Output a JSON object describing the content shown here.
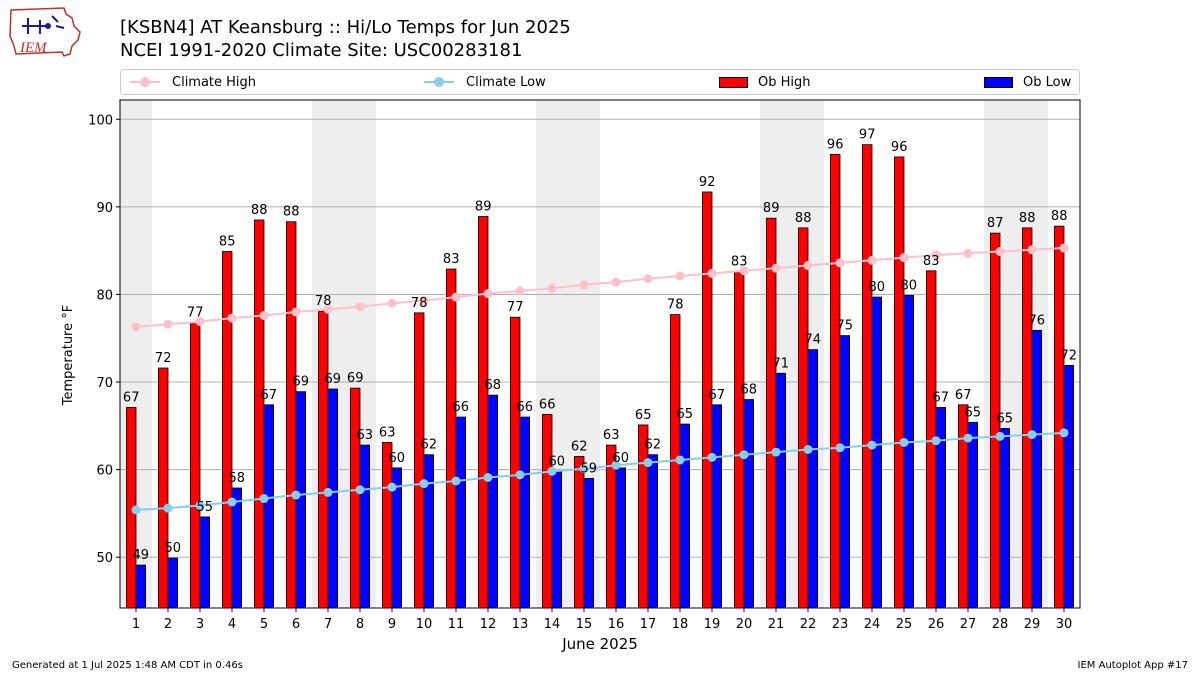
{
  "header": {
    "logo_text": "IEM",
    "title_line1": "[KSBN4] AT Keansburg :: Hi/Lo Temps for Jun 2025",
    "title_line2": "NCEI 1991-2020 Climate Site: USC00283181"
  },
  "legend": {
    "climate_high": "Climate High",
    "climate_low": "Climate Low",
    "ob_high": "Ob High",
    "ob_low": "Ob Low"
  },
  "colors": {
    "ob_high": "#ff0000",
    "ob_low": "#0000ff",
    "climate_high": "#ffc0cb",
    "climate_low": "#87ceeb",
    "weekend_band": "#eeeeee"
  },
  "footer": {
    "left": "Generated at 1 Jul 2025 1:48 AM CDT in 0.46s",
    "right": "IEM Autoplot App #17"
  },
  "chart_data": {
    "type": "bar",
    "xlabel": "June 2025",
    "ylabel": "Temperature °F",
    "ylim": [
      44.2,
      102.2
    ],
    "yticks": [
      50,
      60,
      70,
      80,
      90,
      100
    ],
    "grid": true,
    "legend_position": "top",
    "categories": [
      "1",
      "2",
      "3",
      "4",
      "5",
      "6",
      "7",
      "8",
      "9",
      "10",
      "11",
      "12",
      "13",
      "14",
      "15",
      "16",
      "17",
      "18",
      "19",
      "20",
      "21",
      "22",
      "23",
      "24",
      "25",
      "26",
      "27",
      "28",
      "29",
      "30"
    ],
    "weekend_days": [
      1,
      7,
      8,
      14,
      15,
      21,
      22,
      28,
      29
    ],
    "series": [
      {
        "name": "Ob High",
        "kind": "bar",
        "values": [
          67.1,
          71.6,
          76.8,
          84.9,
          88.5,
          88.3,
          78.1,
          69.3,
          63.1,
          77.9,
          82.9,
          88.9,
          77.4,
          66.3,
          61.5,
          62.8,
          65.1,
          77.7,
          91.7,
          82.6,
          88.7,
          87.6,
          96.0,
          97.1,
          95.7,
          82.7,
          67.4,
          87.0,
          87.6,
          87.8
        ],
        "labels": [
          "67",
          "72",
          "77",
          "85",
          "88",
          "88",
          "78",
          "69",
          "63",
          "78",
          "83",
          "89",
          "77",
          "66",
          "62",
          "63",
          "65",
          "78",
          "92",
          "83",
          "89",
          "88",
          "96",
          "97",
          "96",
          "83",
          "67",
          "87",
          "88",
          "88"
        ]
      },
      {
        "name": "Ob Low",
        "kind": "bar",
        "values": [
          49.1,
          49.9,
          54.6,
          57.9,
          67.4,
          68.9,
          69.2,
          62.8,
          60.2,
          61.7,
          66.0,
          68.5,
          66.0,
          59.8,
          59.0,
          60.2,
          61.7,
          65.2,
          67.4,
          68.0,
          71.0,
          73.7,
          75.3,
          79.7,
          79.9,
          67.1,
          65.4,
          64.7,
          75.9,
          71.9
        ],
        "labels": [
          "49",
          "50",
          "55",
          "58",
          "67",
          "69",
          "69",
          "63",
          "60",
          "62",
          "66",
          "68",
          "66",
          "60",
          "59",
          "60",
          "62",
          "65",
          "67",
          "68",
          "71",
          "74",
          "75",
          "80",
          "80",
          "67",
          "65",
          "65",
          "76",
          "72"
        ]
      },
      {
        "name": "Climate High",
        "kind": "line",
        "values": [
          76.3,
          76.6,
          76.9,
          77.3,
          77.6,
          78.0,
          78.3,
          78.6,
          79.0,
          79.3,
          79.7,
          80.1,
          80.4,
          80.7,
          81.1,
          81.4,
          81.8,
          82.1,
          82.4,
          82.7,
          83.0,
          83.3,
          83.6,
          83.9,
          84.2,
          84.5,
          84.7,
          84.9,
          85.1,
          85.3
        ]
      },
      {
        "name": "Climate Low",
        "kind": "line",
        "values": [
          55.4,
          55.6,
          55.9,
          56.3,
          56.7,
          57.1,
          57.4,
          57.7,
          58.0,
          58.4,
          58.7,
          59.1,
          59.4,
          59.8,
          60.1,
          60.5,
          60.8,
          61.1,
          61.4,
          61.7,
          62.0,
          62.3,
          62.5,
          62.8,
          63.1,
          63.3,
          63.6,
          63.8,
          64.0,
          64.2
        ]
      }
    ]
  }
}
